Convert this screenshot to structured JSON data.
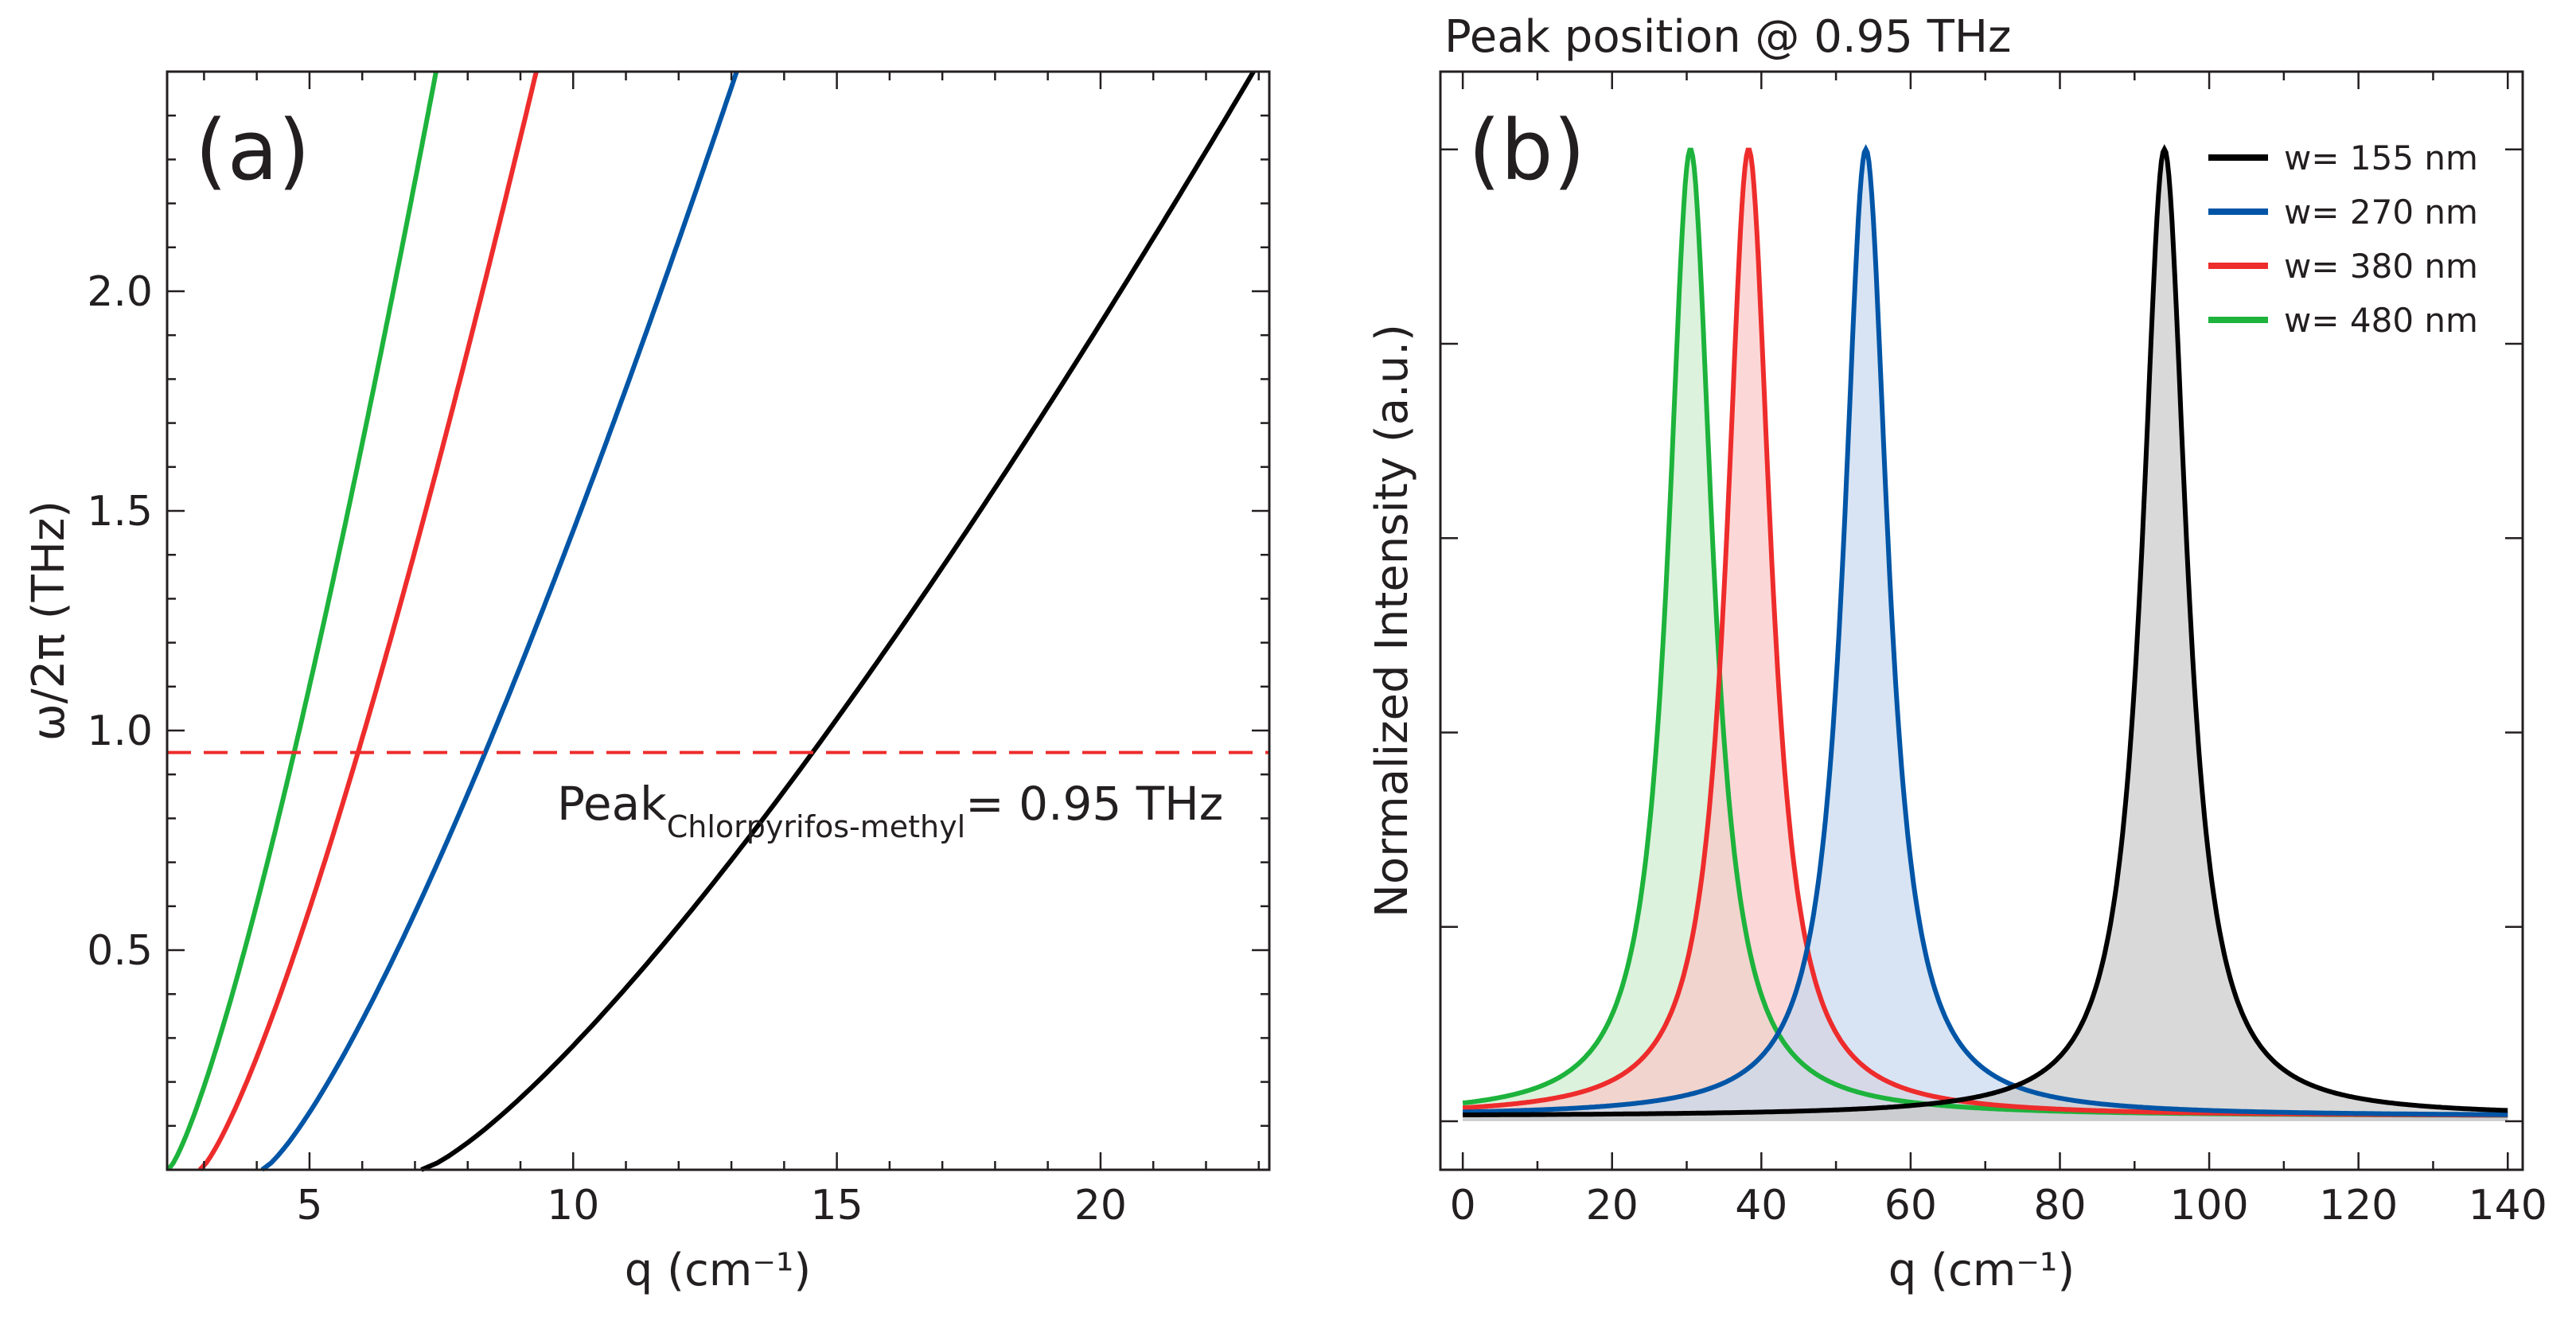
{
  "chart_data": [
    {
      "type": "line",
      "panel_label": "(a)",
      "xlabel": "q (cm⁻¹)",
      "ylabel": "ω/2π (THz)",
      "xlim": [
        2.3,
        23.2
      ],
      "ylim": [
        0.0,
        2.5
      ],
      "x_ticks": [
        5,
        10,
        15,
        20
      ],
      "y_ticks": [
        0.5,
        1.0,
        1.5,
        2.0
      ],
      "x_tick_labels": [
        "5",
        "10",
        "15",
        "20"
      ],
      "y_tick_labels": [
        "0.5",
        "1.0",
        "1.5",
        "2.0"
      ],
      "series": [
        {
          "name": "w= 155 nm",
          "color": "#000000",
          "q0": 7.12,
          "q_top": 22.9,
          "f_top": 2.5
        },
        {
          "name": "w= 270 nm",
          "color": "#0055a6",
          "q0": 4.1,
          "q_top": 13.1,
          "f_top": 2.5
        },
        {
          "name": "w= 380 nm",
          "color": "#ee2c2c",
          "q0": 2.92,
          "q_top": 9.3,
          "f_top": 2.5
        },
        {
          "name": "w= 480 nm",
          "color": "#1db33c",
          "q0": 2.32,
          "q_top": 7.4,
          "f_top": 2.5
        }
      ],
      "reference_line": {
        "y": 0.95,
        "color": "#ee2c2c",
        "style": "dashed"
      },
      "annotation": {
        "main": "Peak",
        "subscript": "Chlorpyrifos-methyl",
        "suffix": "= 0.95 THz"
      }
    },
    {
      "type": "area",
      "panel_label": "(b)",
      "title": "Peak position @  0.95 THz",
      "xlabel": "q (cm⁻¹)",
      "ylabel": "Normalized Intensity (a.u.)",
      "xlim": [
        -3,
        142
      ],
      "ylim": [
        -0.05,
        1.08
      ],
      "x_ticks": [
        0,
        20,
        40,
        60,
        80,
        100,
        120,
        140
      ],
      "x_tick_labels": [
        "0",
        "20",
        "40",
        "60",
        "80",
        "100",
        "120",
        "140"
      ],
      "legend_position": "top-right",
      "series": [
        {
          "name": "w= 155 nm",
          "color": "#000000",
          "fill": "#c9c9c9",
          "peak_q": 94.0,
          "hwhm": 3.6,
          "baseline": 0.005
        },
        {
          "name": "w= 270 nm",
          "color": "#0055a6",
          "fill": "#c7d9ee",
          "peak_q": 54.0,
          "hwhm": 3.6,
          "baseline": 0.005
        },
        {
          "name": "w= 380 nm",
          "color": "#ee2c2c",
          "fill": "#f9c8c6",
          "peak_q": 38.3,
          "hwhm": 3.6,
          "baseline": 0.005
        },
        {
          "name": "w= 480 nm",
          "color": "#1db33c",
          "fill": "#cdeccf",
          "peak_q": 30.5,
          "hwhm": 3.6,
          "baseline": 0.005
        }
      ]
    }
  ]
}
